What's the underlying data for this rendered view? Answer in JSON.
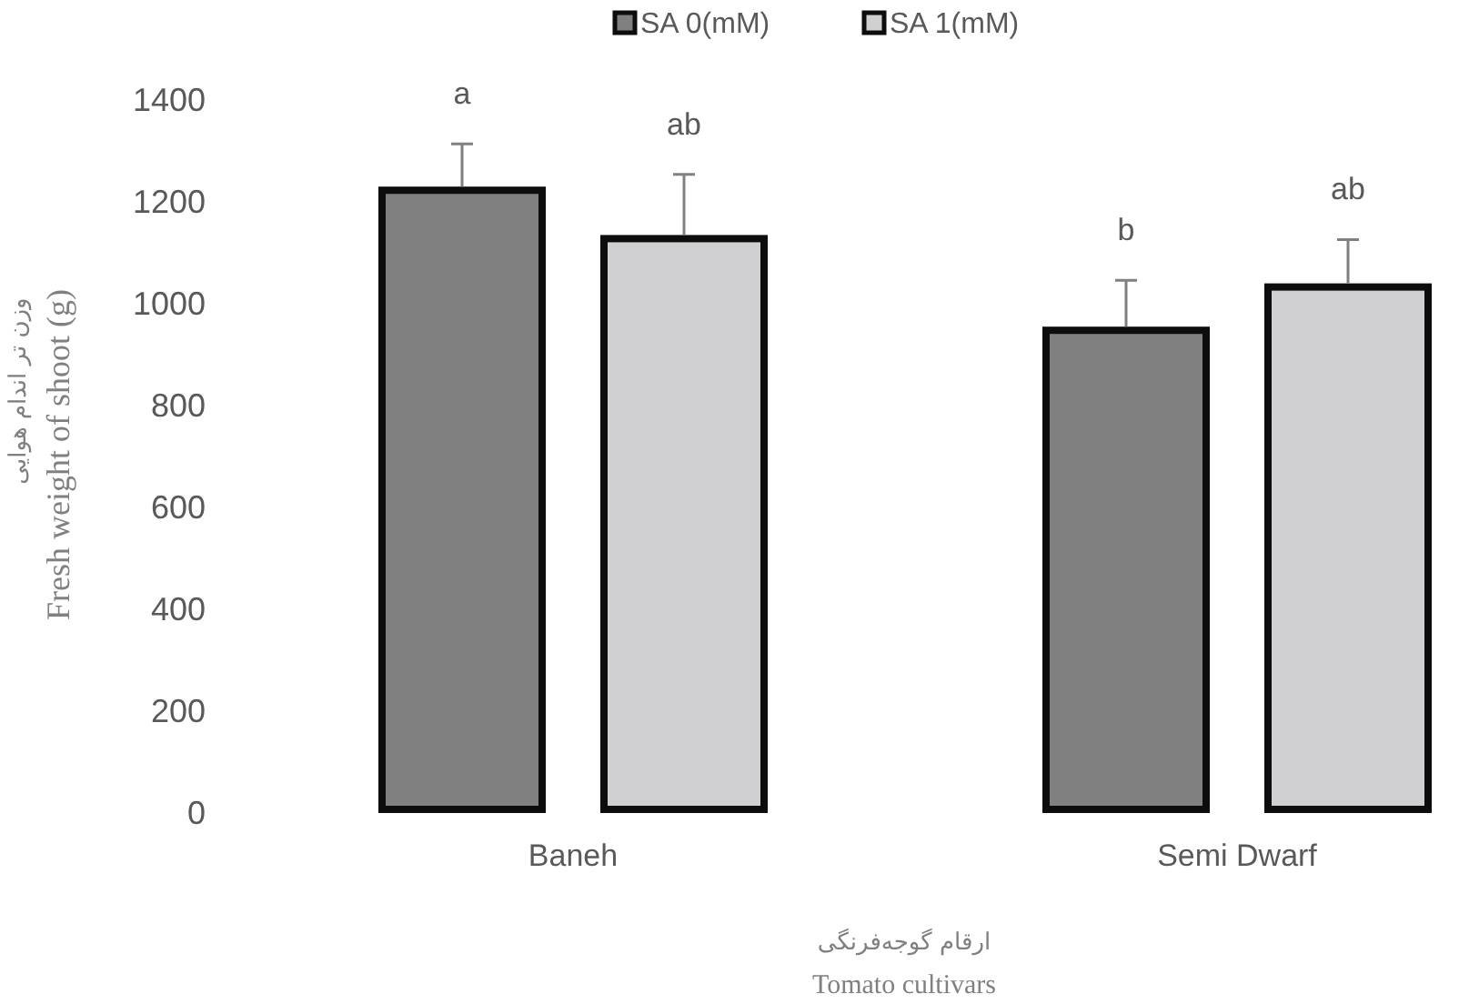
{
  "chart_data": {
    "type": "bar",
    "categories": [
      "Baneh",
      "Semi Dwarf"
    ],
    "series": [
      {
        "name": "SA 0(mM)",
        "color": "#808080",
        "values": [
          1230,
          955
        ],
        "errors": [
          [
            1230,
            1314
          ],
          [
            955,
            1046
          ]
        ],
        "value_labels": [
          "a",
          "b"
        ]
      },
      {
        "name": "SA 1(mM)",
        "color": "#d0cfd1",
        "values": [
          1135,
          1040
        ],
        "errors": [
          [
            1135,
            1254
          ],
          [
            1040,
            1126
          ]
        ],
        "value_labels": [
          "ab",
          "ab"
        ]
      }
    ],
    "ylim": [
      0,
      1400
    ],
    "yticks": [
      0,
      200,
      400,
      600,
      800,
      1000,
      1200,
      1400
    ],
    "xlabel": "Tomato cultivars",
    "ylabel": "Fresh weight of shoot (g)",
    "annotations": [
      "وزن تر اندام هوایی",
      "ارقام گوجه‌فرنگی"
    ],
    "legend": "top",
    "grid": false
  }
}
